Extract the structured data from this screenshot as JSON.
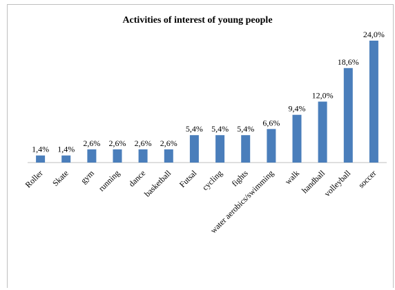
{
  "chart_data": {
    "type": "bar",
    "title": "Activities of interest of young people",
    "categories": [
      "Roller",
      "Skate",
      "gym",
      "running",
      "dance",
      "basketball",
      "Futsal",
      "cycling",
      "fights",
      "water aerobics/swimming",
      "walk",
      "handball",
      "volleyball",
      "soccer"
    ],
    "values": [
      1.4,
      1.4,
      2.6,
      2.6,
      2.6,
      2.6,
      5.4,
      5.4,
      5.4,
      6.6,
      9.4,
      12.0,
      18.6,
      24.0
    ],
    "data_labels": [
      "1,4%",
      "1,4%",
      "2,6%",
      "2,6%",
      "2,6%",
      "2,6%",
      "5,4%",
      "5,4%",
      "5,4%",
      "6,6%",
      "9,4%",
      "12,0%",
      "18,6%",
      "24,0%"
    ],
    "unit": "%",
    "ylim": [
      0,
      24
    ],
    "bar_color": "#4a7ebb",
    "grid": false,
    "legend": "none"
  }
}
